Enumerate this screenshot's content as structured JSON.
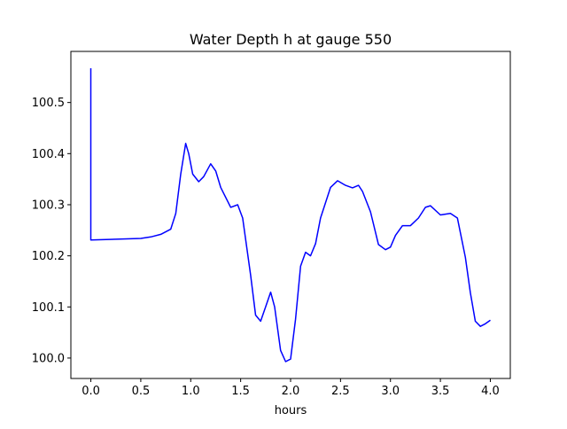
{
  "chart_data": {
    "type": "line",
    "title": "Water Depth h at gauge 550",
    "xlabel": "hours",
    "ylabel": "",
    "xlim": [
      -0.2,
      4.2
    ],
    "ylim": [
      99.96,
      100.6
    ],
    "xticks": [
      0.0,
      0.5,
      1.0,
      1.5,
      2.0,
      2.5,
      3.0,
      3.5,
      4.0
    ],
    "xtick_labels": [
      "0.0",
      "0.5",
      "1.0",
      "1.5",
      "2.0",
      "2.5",
      "3.0",
      "3.5",
      "4.0"
    ],
    "yticks": [
      100.0,
      100.1,
      100.2,
      100.3,
      100.4,
      100.5
    ],
    "ytick_labels": [
      "100.0",
      "100.1",
      "100.2",
      "100.3",
      "100.4",
      "100.5"
    ],
    "grid": false,
    "series": [
      {
        "name": "h",
        "color": "#0000ff",
        "x": [
          0.0,
          0.0,
          0.5,
          0.6,
          0.7,
          0.8,
          0.85,
          0.9,
          0.95,
          0.98,
          1.02,
          1.08,
          1.13,
          1.2,
          1.25,
          1.3,
          1.4,
          1.47,
          1.52,
          1.6,
          1.65,
          1.7,
          1.75,
          1.8,
          1.84,
          1.9,
          1.95,
          2.0,
          2.05,
          2.1,
          2.15,
          2.2,
          2.25,
          2.3,
          2.4,
          2.47,
          2.55,
          2.62,
          2.68,
          2.72,
          2.8,
          2.88,
          2.95,
          3.0,
          3.05,
          3.12,
          3.2,
          3.28,
          3.35,
          3.4,
          3.5,
          3.6,
          3.67,
          3.75,
          3.8,
          3.85,
          3.9,
          3.95,
          4.0
        ],
        "y": [
          100.567,
          100.231,
          100.234,
          100.237,
          100.242,
          100.252,
          100.283,
          100.36,
          100.42,
          100.4,
          100.36,
          100.345,
          100.355,
          100.38,
          100.366,
          100.334,
          100.295,
          100.3,
          100.274,
          100.162,
          100.084,
          100.072,
          100.1,
          100.129,
          100.1,
          100.015,
          99.993,
          99.998,
          100.076,
          100.18,
          100.207,
          100.2,
          100.224,
          100.274,
          100.334,
          100.347,
          100.338,
          100.333,
          100.338,
          100.326,
          100.286,
          100.222,
          100.212,
          100.217,
          100.24,
          100.259,
          100.259,
          100.274,
          100.295,
          100.298,
          100.28,
          100.283,
          100.274,
          100.197,
          100.128,
          100.072,
          100.062,
          100.067,
          100.074
        ]
      }
    ]
  }
}
